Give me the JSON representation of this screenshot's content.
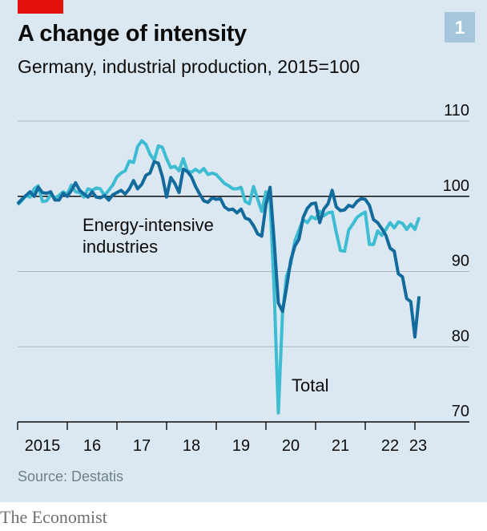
{
  "header": {
    "title": "A change of intensity",
    "subtitle": "Germany, industrial production, 2015=100",
    "chart_number": "1"
  },
  "footer": {
    "source": "Source: Destatis",
    "brand": "The Economist"
  },
  "colors": {
    "total": "#136a9c",
    "energy_intensive": "#3ebcd2",
    "gridline": "#a9b7c2",
    "baseline": "#0c0c0c",
    "axis_text": "#0c0c0c"
  },
  "chart_data": {
    "type": "line",
    "x_unit": "month",
    "x_start": "2015-01",
    "x_end": "2023-01",
    "ylim": [
      70,
      110
    ],
    "y_ticks": [
      70,
      80,
      90,
      100,
      110
    ],
    "baseline_value": 100,
    "x_tick_labels": [
      {
        "label": "2015",
        "year": 2015
      },
      {
        "label": "16",
        "year": 2016
      },
      {
        "label": "17",
        "year": 2017
      },
      {
        "label": "18",
        "year": 2018
      },
      {
        "label": "19",
        "year": 2019
      },
      {
        "label": "20",
        "year": 2020
      },
      {
        "label": "21",
        "year": 2021
      },
      {
        "label": "22",
        "year": 2022
      },
      {
        "label": "23",
        "year": 2023
      }
    ],
    "series": [
      {
        "id": "total",
        "name": "Total",
        "values": [
          99.0,
          99.6,
          100.1,
          100.6,
          100.0,
          101.2,
          100.5,
          100.4,
          100.6,
          99.5,
          99.5,
          100.4,
          100.0,
          100.8,
          101.8,
          100.8,
          100.3,
          99.9,
          100.6,
          99.9,
          99.8,
          100.1,
          99.5,
          100.2,
          100.5,
          100.8,
          100.3,
          101.0,
          102.1,
          101.0,
          101.6,
          102.8,
          103.1,
          104.6,
          104.4,
          102.6,
          99.9,
          102.5,
          101.7,
          100.5,
          103.6,
          103.3,
          102.6,
          101.3,
          100.3,
          99.4,
          99.2,
          99.8,
          99.6,
          99.7,
          98.6,
          98.2,
          98.3,
          97.8,
          98.3,
          97.1,
          96.9,
          96.1,
          95.0,
          94.7,
          98.9,
          101.2,
          94.0,
          85.8,
          84.7,
          87.9,
          91.5,
          93.4,
          94.3,
          97.2,
          98.4,
          99.0,
          99.1,
          96.5,
          98.3,
          99.0,
          100.8,
          98.6,
          98.1,
          98.2,
          98.8,
          98.6,
          99.3,
          99.7,
          99.6,
          98.8,
          96.9,
          96.5,
          95.7,
          94.8,
          93.1,
          92.7,
          89.7,
          89.3,
          86.4,
          86.0,
          81.3,
          86.7
        ]
      },
      {
        "id": "energy_intensive",
        "name": "Energy-intensive\nindustries",
        "values": [
          98.9,
          99.4,
          100.1,
          99.9,
          101.0,
          101.4,
          99.3,
          99.4,
          100.2,
          99.8,
          100.1,
          100.6,
          100.3,
          101.5,
          100.6,
          100.5,
          99.9,
          101.0,
          100.8,
          101.1,
          101.0,
          100.1,
          100.8,
          101.5,
          102.6,
          103.1,
          103.4,
          104.7,
          104.5,
          106.6,
          107.4,
          106.9,
          105.6,
          104.8,
          106.7,
          106.5,
          105.0,
          103.8,
          104.0,
          103.4,
          105.0,
          103.4,
          103.2,
          103.6,
          103.2,
          103.7,
          102.9,
          103.1,
          102.9,
          102.3,
          101.7,
          101.4,
          101.0,
          101.0,
          101.2,
          99.3,
          99.0,
          101.3,
          99.6,
          98.0,
          100.6,
          99.4,
          87.4,
          71.2,
          84.4,
          89.4,
          91.0,
          94.1,
          95.5,
          96.9,
          96.5,
          97.3,
          97.0,
          98.0,
          97.4,
          97.8,
          97.9,
          95.2,
          92.8,
          92.7,
          95.5,
          96.3,
          97.2,
          97.6,
          97.9,
          93.6,
          93.6,
          95.4,
          94.8,
          95.6,
          96.5,
          95.8,
          96.6,
          96.4,
          95.6,
          96.3,
          95.6,
          97.2
        ]
      }
    ],
    "annotations": [
      {
        "text": "Energy-intensive\nindustries",
        "series": "energy_intensive"
      },
      {
        "text": "Total",
        "series": "total"
      }
    ]
  }
}
